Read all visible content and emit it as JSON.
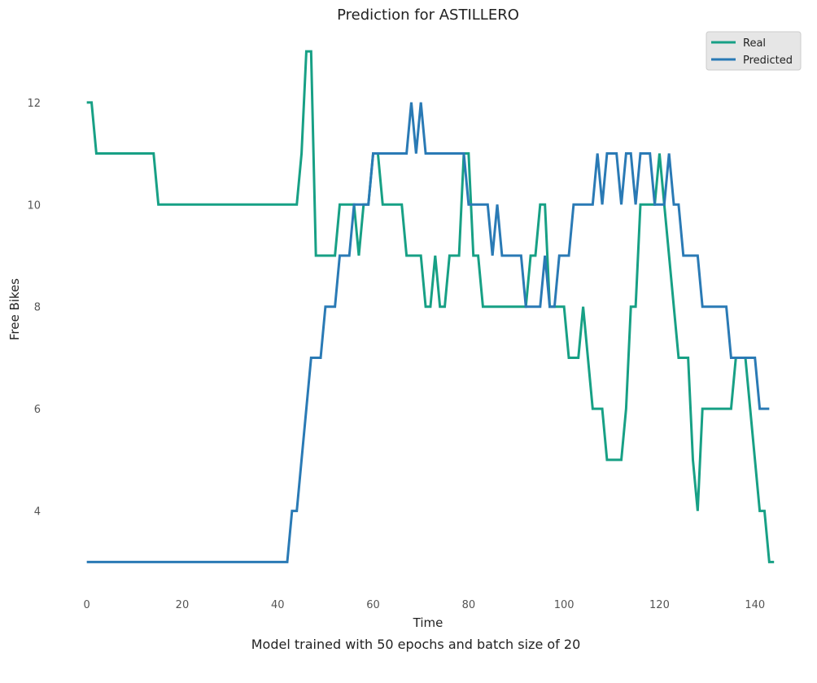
{
  "chart_data": {
    "type": "line",
    "title": "Prediction for ASTILLERO",
    "xlabel": "Time",
    "ylabel": "Free Bikes",
    "caption": "Model trained with 50 epochs and batch size of 20",
    "xlim": [
      -2.5,
      145.5
    ],
    "ylim": [
      2.4,
      13.4
    ],
    "xticks": [
      0,
      20,
      40,
      60,
      80,
      100,
      120,
      140
    ],
    "yticks": [
      4,
      6,
      8,
      10,
      12
    ],
    "grid": false,
    "legend": "top-right",
    "series": [
      {
        "name": "Real",
        "color": "#17a085",
        "values": [
          12,
          12,
          11,
          11,
          11,
          11,
          11,
          11,
          11,
          11,
          11,
          11,
          11,
          11,
          11,
          10,
          10,
          10,
          10,
          10,
          10,
          10,
          10,
          10,
          10,
          10,
          10,
          10,
          10,
          10,
          10,
          10,
          10,
          10,
          10,
          10,
          10,
          10,
          10,
          10,
          10,
          10,
          10,
          10,
          10,
          11,
          13,
          13,
          9,
          9,
          9,
          9,
          9,
          10,
          10,
          10,
          10,
          9,
          10,
          10,
          11,
          11,
          10,
          10,
          10,
          10,
          10,
          9,
          9,
          9,
          9,
          8,
          8,
          9,
          8,
          8,
          9,
          9,
          9,
          11,
          11,
          9,
          9,
          8,
          8,
          8,
          8,
          8,
          8,
          8,
          8,
          8,
          8,
          9,
          9,
          10,
          10,
          8,
          8,
          8,
          8,
          7,
          7,
          7,
          8,
          7,
          6,
          6,
          6,
          5,
          5,
          5,
          5,
          6,
          8,
          8,
          10,
          10,
          10,
          10,
          11,
          10,
          9,
          8,
          7,
          7,
          7,
          5,
          4,
          6,
          6,
          6,
          6,
          6,
          6,
          6,
          7,
          7,
          7,
          6,
          5,
          4,
          4,
          3,
          3
        ]
      },
      {
        "name": "Predicted",
        "color": "#2a7ab5",
        "values": [
          3,
          3,
          3,
          3,
          3,
          3,
          3,
          3,
          3,
          3,
          3,
          3,
          3,
          3,
          3,
          3,
          3,
          3,
          3,
          3,
          3,
          3,
          3,
          3,
          3,
          3,
          3,
          3,
          3,
          3,
          3,
          3,
          3,
          3,
          3,
          3,
          3,
          3,
          3,
          3,
          3,
          3,
          3,
          4,
          4,
          5,
          6,
          7,
          7,
          7,
          8,
          8,
          8,
          9,
          9,
          9,
          10,
          10,
          10,
          10,
          11,
          11,
          11,
          11,
          11,
          11,
          11,
          11,
          12,
          11,
          12,
          11,
          11,
          11,
          11,
          11,
          11,
          11,
          11,
          11,
          10,
          10,
          10,
          10,
          10,
          9,
          10,
          9,
          9,
          9,
          9,
          9,
          8,
          8,
          8,
          8,
          9,
          8,
          8,
          9,
          9,
          9,
          10,
          10,
          10,
          10,
          10,
          11,
          10,
          11,
          11,
          11,
          10,
          11,
          11,
          10,
          11,
          11,
          11,
          10,
          10,
          10,
          11,
          10,
          10,
          9,
          9,
          9,
          9,
          8,
          8,
          8,
          8,
          8,
          8,
          7,
          7,
          7,
          7,
          7,
          7,
          6,
          6,
          6
        ]
      }
    ]
  }
}
